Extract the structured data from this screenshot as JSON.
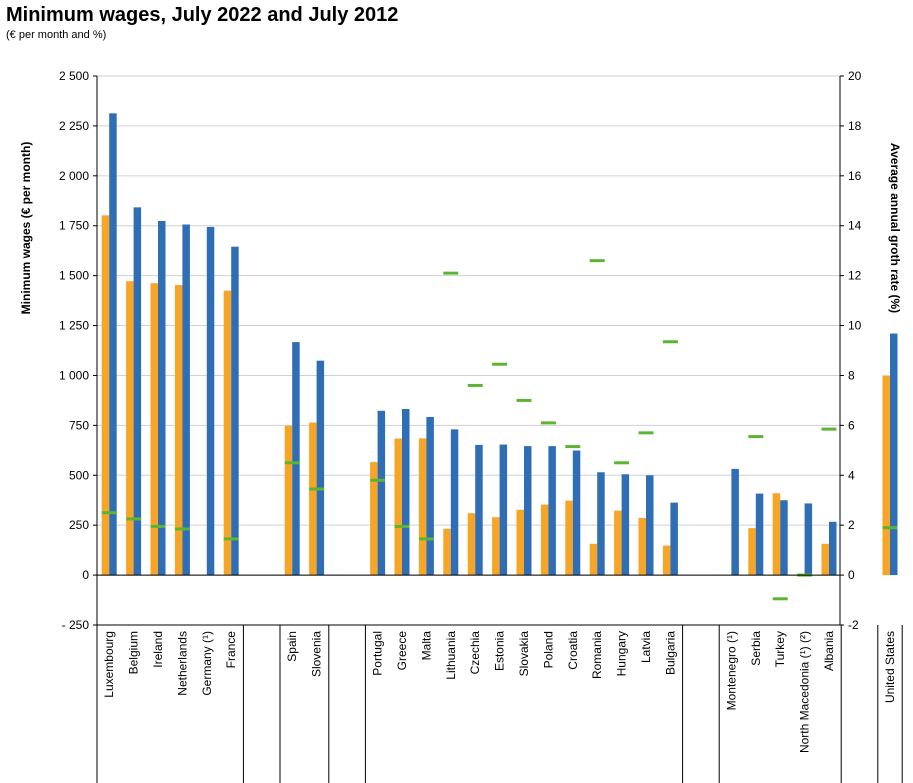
{
  "title": "Minimum wages, July 2022 and July 2012",
  "subtitle": "(€ per month and %)",
  "colors": {
    "series_2012": "#f7a527",
    "series_2022": "#2f6eb5",
    "growth": "#5cb532",
    "grid": "#d0d0d0"
  },
  "chart_data": {
    "type": "bar",
    "title": "Minimum wages, July 2022 and July 2012",
    "subtitle": "(€ per month and %)",
    "ylabel": "Minimum wages (€ per month)",
    "y2label": "Average annual groth rate (%)",
    "ylim": [
      -250,
      2500
    ],
    "y2lim": [
      -2,
      20
    ],
    "yticks": [
      -250,
      0,
      250,
      500,
      750,
      1000,
      1250,
      1500,
      1750,
      2000,
      2250,
      2500
    ],
    "ytick_labels": [
      "- 250",
      "0",
      "250",
      "500",
      "750",
      "1 000",
      "1 250",
      "1 500",
      "1 750",
      "2 000",
      "2 250",
      "2 500"
    ],
    "y2ticks": [
      -2,
      0,
      2,
      4,
      6,
      8,
      10,
      12,
      14,
      16,
      18,
      20
    ],
    "ytick2_labels": [
      "-2",
      "0",
      "2",
      "4",
      "6",
      "8",
      "10",
      "12",
      "14",
      "16",
      "18",
      "20"
    ],
    "grid": true,
    "categories": [
      "Luxembourg",
      "Belgium",
      "Ireland",
      "Netherlands",
      "Germany (¹)",
      "France",
      "Spain",
      "Slovenia",
      "Portugal",
      "Greece",
      "Malta",
      "Lithuania",
      "Czechia",
      "Estonia",
      "Slovakia",
      "Poland",
      "Croatia",
      "Romania",
      "Hungary",
      "Latvia",
      "Bulgaria",
      "Montenegro (¹)",
      "Serbia",
      "Turkey",
      "North Macedonia (¹) (²)",
      "Albania",
      "United States"
    ],
    "groups": [
      6,
      2,
      13,
      5,
      1
    ],
    "series": [
      {
        "values": [
          1802,
          1472,
          1462,
          1453,
          null,
          1425,
          748,
          764,
          566,
          684,
          685,
          232,
          310,
          290,
          327,
          353,
          373,
          157,
          323,
          286,
          148,
          null,
          235,
          410,
          null,
          157,
          1000
        ]
      },
      {
        "values": [
          2313,
          1842,
          1774,
          1756,
          1744,
          1645,
          1167,
          1074,
          823,
          832,
          792,
          730,
          652,
          654,
          646,
          646,
          624,
          515,
          505,
          500,
          363,
          532,
          408,
          375,
          359,
          267,
          1210
        ]
      },
      {
        "axis": "right",
        "values": [
          2.5,
          2.25,
          1.95,
          1.85,
          null,
          1.45,
          4.5,
          3.45,
          3.8,
          1.95,
          1.45,
          12.1,
          7.6,
          8.45,
          7.0,
          6.1,
          5.15,
          12.6,
          4.5,
          5.7,
          9.35,
          null,
          5.55,
          -0.95,
          0.0,
          5.85,
          1.9
        ]
      }
    ]
  }
}
